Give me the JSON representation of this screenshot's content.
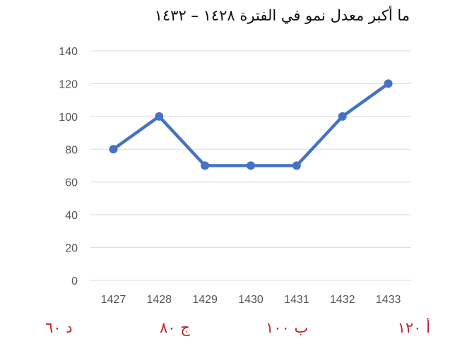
{
  "question": "ما أكبر معدل نمو في الفترة ١٤٢٨ – ١٤٣٢",
  "chart_data": {
    "type": "line",
    "x": [
      "1427",
      "1428",
      "1429",
      "1430",
      "1431",
      "1432",
      "1433"
    ],
    "series": [
      {
        "values": [
          80,
          100,
          70,
          70,
          70,
          100,
          120
        ]
      }
    ],
    "yticks": [
      0,
      20,
      40,
      60,
      80,
      100,
      120,
      140
    ],
    "ylim": [
      0,
      140
    ],
    "grid": true,
    "line_color": "#4472c4",
    "grid_color": "#d9d9d9",
    "title": "",
    "xlabel": "",
    "ylabel": ""
  },
  "options": {
    "a": "أ ١٢٠",
    "b": "ب ١٠٠",
    "c": "ج ٨٠",
    "d": "د ٦٠"
  },
  "colors": {
    "options_text": "#c0222a"
  }
}
